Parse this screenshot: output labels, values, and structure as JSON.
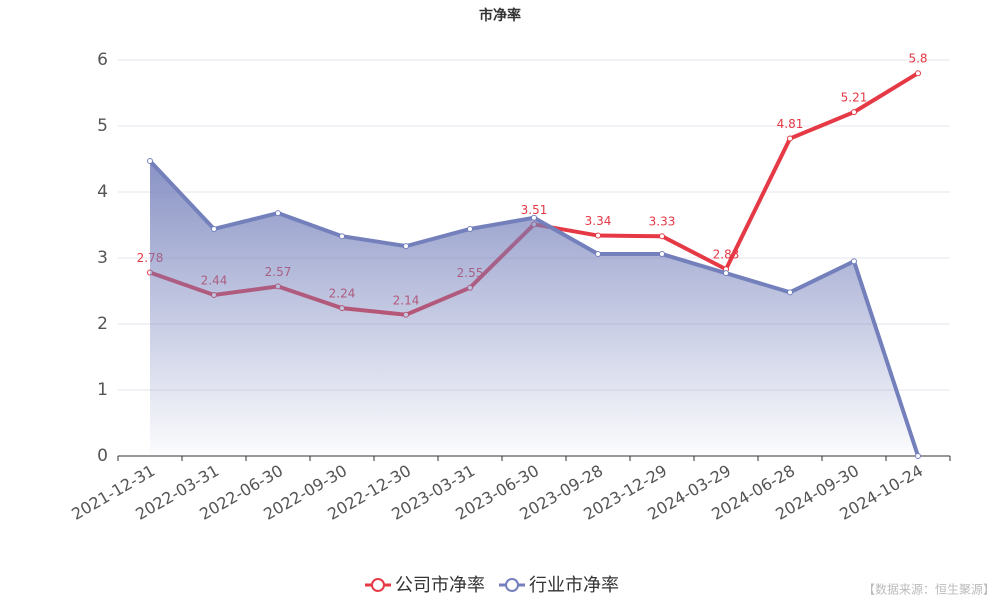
{
  "chart_data": {
    "type": "line",
    "title": "市净率",
    "source": "【数据来源：恒生聚源】",
    "categories": [
      "2021-12-31",
      "2022-03-31",
      "2022-06-30",
      "2022-09-30",
      "2022-12-30",
      "2023-03-31",
      "2023-06-30",
      "2023-09-28",
      "2023-12-29",
      "2024-03-29",
      "2024-06-28",
      "2024-09-30",
      "2024-10-24"
    ],
    "series": [
      {
        "name": "公司市净率",
        "color": "#e63946",
        "values": [
          2.78,
          2.44,
          2.57,
          2.24,
          2.14,
          2.55,
          3.51,
          3.34,
          3.33,
          2.83,
          4.81,
          5.21,
          5.8
        ]
      },
      {
        "name": "行业市净率",
        "color": "#7480bb",
        "area": true,
        "values": [
          4.47,
          3.44,
          3.68,
          3.33,
          3.18,
          3.44,
          3.61,
          3.06,
          3.06,
          2.77,
          2.48,
          2.95,
          0
        ]
      }
    ],
    "ylim": [
      0,
      6
    ],
    "yticks": [
      0,
      1,
      2,
      3,
      4,
      5,
      6
    ],
    "grid": true,
    "legend": "bottom"
  }
}
